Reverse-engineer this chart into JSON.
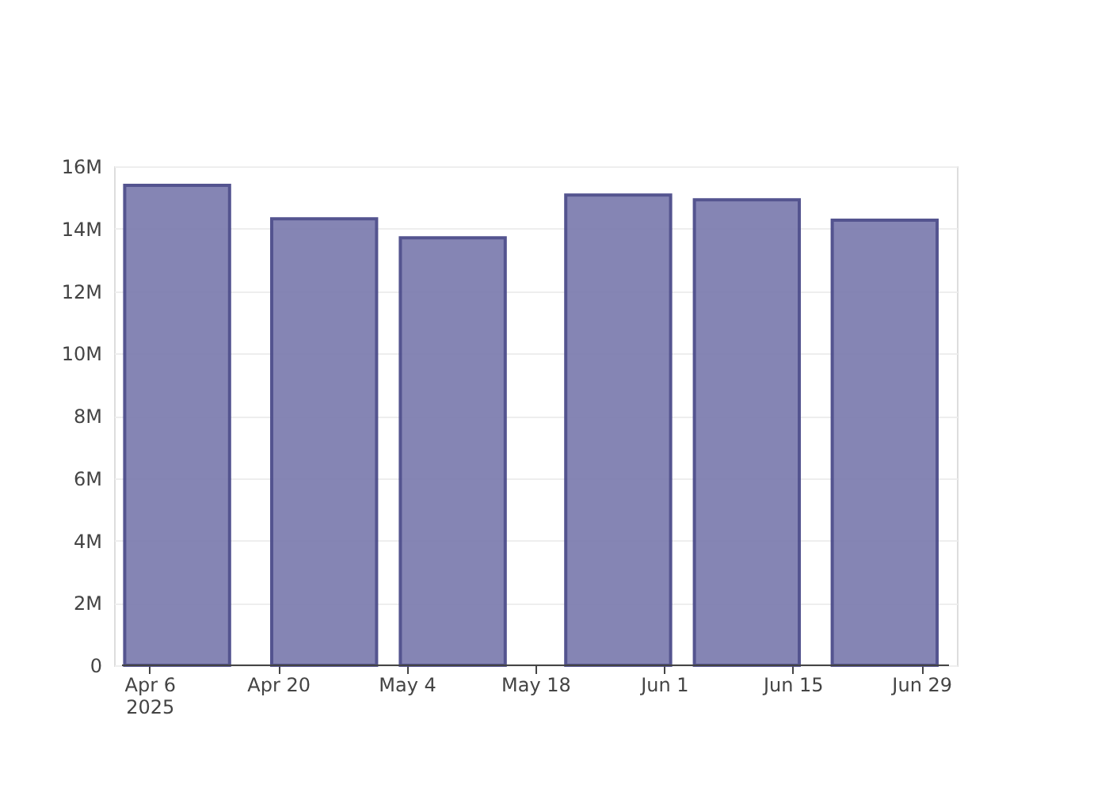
{
  "chart_data": {
    "type": "bar",
    "x": [
      "2025-04-09",
      "2025-04-25",
      "2025-05-09",
      "2025-05-27",
      "2025-06-10",
      "2025-06-25"
    ],
    "series": [
      {
        "color": "#7f7fb0",
        "values": [
          15.39,
          14.32,
          13.71,
          15.08,
          14.93,
          14.27
        ]
      }
    ],
    "xlim": [
      "2025-04-03",
      "2025-07-02"
    ],
    "xticks": [
      {
        "value": "2025-04-06",
        "label": "Apr 6\n2025"
      },
      {
        "value": "2025-04-20",
        "label": "Apr 20"
      },
      {
        "value": "2025-05-04",
        "label": "May 4"
      },
      {
        "value": "2025-05-18",
        "label": "May 18"
      },
      {
        "value": "2025-06-01",
        "label": "Jun 1"
      },
      {
        "value": "2025-06-15",
        "label": "Jun 15"
      },
      {
        "value": "2025-06-29",
        "label": "Jun 29"
      }
    ],
    "ylim": [
      0,
      16
    ],
    "yticks": [
      {
        "value": 0,
        "label": "0"
      },
      {
        "value": 2,
        "label": "2M"
      },
      {
        "value": 4,
        "label": "4M"
      },
      {
        "value": 6,
        "label": "6M"
      },
      {
        "value": 8,
        "label": "8M"
      },
      {
        "value": 10,
        "label": "10M"
      },
      {
        "value": 12,
        "label": "12M"
      },
      {
        "value": 14,
        "label": "14M"
      },
      {
        "value": 16,
        "label": "16M"
      }
    ],
    "grid": "y",
    "legend": false
  }
}
